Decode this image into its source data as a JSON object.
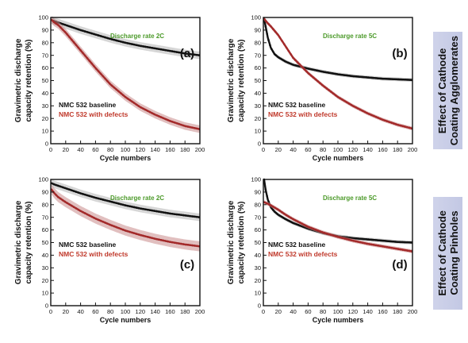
{
  "colors": {
    "baseline": "#111111",
    "defects": "#a32a2a",
    "band": "#b5b5b5",
    "band_defects": "#c98a8a",
    "rate_label": "#4c9a2a",
    "legend_defects": "#c0392b",
    "side_box": "#c7cbe6"
  },
  "side_labels": [
    {
      "line1": "Effect of Cathode",
      "line2": "Coating Agglomerates"
    },
    {
      "line1": "Effect of Cathode",
      "line2": "Coating Pinholes"
    }
  ],
  "chart_data": [
    {
      "type": "line",
      "panel_label": "(a)",
      "rate_label": "Discharge rate 2C",
      "xlabel": "Cycle numbers",
      "ylabel_line1": "Gravimetric discharge",
      "ylabel_line2": "capacity retention (%)",
      "xlim": [
        0,
        200
      ],
      "ylim": [
        0,
        100
      ],
      "xticks": [
        0,
        20,
        40,
        60,
        80,
        100,
        120,
        140,
        160,
        180,
        200
      ],
      "yticks": [
        0,
        10,
        20,
        30,
        40,
        50,
        60,
        70,
        80,
        90,
        100
      ],
      "legend": [
        "NMC  532 baseline",
        "NMC  532 with defects"
      ],
      "series": [
        {
          "name": "NMC  532 baseline",
          "x": [
            1,
            5,
            10,
            20,
            30,
            40,
            60,
            80,
            100,
            120,
            140,
            160,
            180,
            200
          ],
          "y": [
            98,
            97,
            96,
            94,
            92,
            90,
            86.5,
            83,
            80,
            77.5,
            75.5,
            73.5,
            71.5,
            70
          ],
          "band": 3
        },
        {
          "name": "NMC  532 with defects",
          "x": [
            1,
            5,
            10,
            20,
            30,
            40,
            60,
            80,
            100,
            120,
            140,
            160,
            180,
            200
          ],
          "y": [
            98,
            96,
            94,
            88,
            81,
            74,
            60,
            47,
            37,
            29,
            23,
            18,
            14,
            11.5
          ],
          "band": 3
        }
      ]
    },
    {
      "type": "line",
      "panel_label": "(b)",
      "rate_label": "Discharge rate 5C",
      "xlabel": "Cycle numbers",
      "ylabel_line1": "Gravimetric discharge",
      "ylabel_line2": "capacity retention (%)",
      "xlim": [
        0,
        200
      ],
      "ylim": [
        0,
        100
      ],
      "xticks": [
        0,
        20,
        40,
        60,
        80,
        100,
        120,
        140,
        160,
        180,
        200
      ],
      "yticks": [
        0,
        10,
        20,
        30,
        40,
        50,
        60,
        70,
        80,
        90,
        100
      ],
      "legend": [
        "NMC  532 baseline",
        "NMC  532 with defects"
      ],
      "series": [
        {
          "name": "NMC  532 baseline",
          "x": [
            1,
            3,
            6,
            10,
            15,
            20,
            30,
            40,
            60,
            80,
            100,
            120,
            140,
            160,
            180,
            200
          ],
          "y": [
            99,
            93,
            84,
            76,
            71,
            68.5,
            65,
            62.5,
            59.5,
            57,
            55,
            53.5,
            52.5,
            51.5,
            51,
            50.5
          ],
          "band": 1.5
        },
        {
          "name": "NMC  532 with defects",
          "x": [
            1,
            5,
            10,
            20,
            30,
            40,
            50,
            60,
            80,
            100,
            120,
            140,
            160,
            180,
            200
          ],
          "y": [
            99,
            96,
            93,
            86,
            77,
            68,
            62,
            56,
            46,
            37,
            30,
            24,
            19,
            15,
            12
          ],
          "band": 1.5
        }
      ]
    },
    {
      "type": "line",
      "panel_label": "(c)",
      "rate_label": "Discharge rate 2C",
      "xlabel": "Cycle numbers",
      "ylabel_line1": "Gravimetric discharge",
      "ylabel_line2": "capacity retention (%)",
      "xlim": [
        0,
        200
      ],
      "ylim": [
        0,
        100
      ],
      "xticks": [
        0,
        20,
        40,
        60,
        80,
        100,
        120,
        140,
        160,
        180,
        200
      ],
      "yticks": [
        0,
        10,
        20,
        30,
        40,
        50,
        60,
        70,
        80,
        90,
        100
      ],
      "legend": [
        "NMC  532 baseline",
        "NMC  532 with defects"
      ],
      "series": [
        {
          "name": "NMC  532 baseline",
          "x": [
            1,
            5,
            10,
            20,
            30,
            40,
            60,
            80,
            100,
            120,
            140,
            160,
            180,
            200
          ],
          "y": [
            97,
            96,
            95,
            93,
            91,
            89,
            85.5,
            82.5,
            79.5,
            77,
            75,
            73,
            71.5,
            70
          ],
          "band": 3
        },
        {
          "name": "NMC  532 with defects",
          "x": [
            1,
            5,
            10,
            20,
            30,
            40,
            60,
            80,
            100,
            120,
            140,
            160,
            180,
            200
          ],
          "y": [
            92,
            89,
            86,
            82,
            78.5,
            75,
            69,
            64,
            59.5,
            56,
            53,
            50.5,
            48.5,
            47
          ],
          "band": 4
        }
      ]
    },
    {
      "type": "line",
      "panel_label": "(d)",
      "rate_label": "Discharge rate 5C",
      "xlabel": "Cycle numbers",
      "ylabel_line1": "Gravimetric discharge",
      "ylabel_line2": "capacity retention (%)",
      "xlim": [
        0,
        200
      ],
      "ylim": [
        0,
        100
      ],
      "xticks": [
        0,
        20,
        40,
        60,
        80,
        100,
        120,
        140,
        160,
        180,
        200
      ],
      "yticks": [
        0,
        10,
        20,
        30,
        40,
        50,
        60,
        70,
        80,
        90,
        100
      ],
      "legend": [
        "NMC  532 baseline",
        "NMC  532 with defects"
      ],
      "series": [
        {
          "name": "NMC  532 baseline",
          "x": [
            1,
            3,
            6,
            10,
            15,
            20,
            30,
            40,
            60,
            80,
            100,
            120,
            140,
            160,
            180,
            200
          ],
          "y": [
            100,
            92,
            84,
            78,
            74.5,
            72,
            68.5,
            65.5,
            61,
            57.5,
            55,
            53.5,
            52.5,
            51.5,
            50.5,
            50
          ],
          "band": 1.5
        },
        {
          "name": "NMC  532 with defects",
          "x": [
            1,
            5,
            10,
            20,
            30,
            40,
            60,
            80,
            100,
            120,
            140,
            160,
            180,
            200
          ],
          "y": [
            82,
            81,
            79.5,
            76,
            72,
            68.5,
            62.5,
            58,
            54.5,
            51.5,
            49,
            47,
            45,
            43
          ],
          "band": 1.5
        }
      ]
    }
  ]
}
